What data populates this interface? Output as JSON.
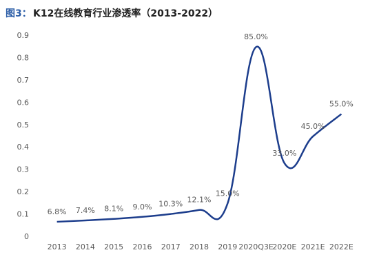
{
  "chart_data": {
    "type": "line",
    "figure_label": "图3：",
    "title": "K12在线教育行业渗透率（2013-2022）",
    "categories": [
      "2013",
      "2014",
      "2015",
      "2016",
      "2017",
      "2018",
      "2019",
      "2020Q3E",
      "2020E",
      "2021E",
      "2022E"
    ],
    "series": [
      {
        "name": "渗透率",
        "color": "#1c3d8c",
        "values": [
          0.068,
          0.074,
          0.081,
          0.09,
          0.103,
          0.121,
          0.15,
          0.85,
          0.33,
          0.45,
          0.55
        ],
        "value_labels": [
          "6.8%",
          "7.4%",
          "8.1%",
          "9.0%",
          "10.3%",
          "12.1%",
          "15.0%",
          "85.0%",
          "33.0%",
          "45.0%",
          "55.0%"
        ]
      }
    ],
    "ylim": [
      0,
      0.9
    ],
    "yticks": [
      0,
      0.1,
      0.2,
      0.3,
      0.4,
      0.5,
      0.6,
      0.7,
      0.8,
      0.9
    ],
    "grid": false
  }
}
